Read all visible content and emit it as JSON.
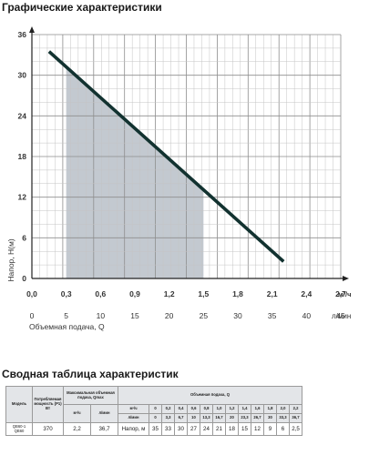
{
  "titles": {
    "chart_section": "Графические характеристики",
    "table_section": "Сводная таблица характеристик"
  },
  "chart_data": {
    "type": "line",
    "ylabel": "Напор, H(м)",
    "xlabel": "Объемная подача, Q",
    "x_unit_top": "м³/ч",
    "x_unit_bottom": "л/мин",
    "xlim": [
      0,
      2.7
    ],
    "ylim": [
      0,
      36
    ],
    "x_ticks": [
      "0,0",
      "0,3",
      "0,6",
      "0,9",
      "1,2",
      "1,5",
      "1,8",
      "2,1",
      "2,4",
      "2,7"
    ],
    "x_ticks_lmin": [
      "0",
      "5",
      "10",
      "15",
      "20",
      "25",
      "30",
      "35",
      "40",
      "45"
    ],
    "y_ticks": [
      "0",
      "6",
      "12",
      "18",
      "24",
      "30",
      "36"
    ],
    "grid": true,
    "series": [
      {
        "x": [
          0.15,
          2.2
        ],
        "y": [
          33.5,
          2.5
        ],
        "color": "#123230"
      }
    ],
    "shaded_range_x": [
      0.3,
      1.5
    ],
    "shade_color": "#bdc3cb"
  },
  "table": {
    "model_header": "Модель",
    "power_header": "Потребляемая мощность (P1) Вт",
    "max_flow_header": "Максимальная объемная подача, Qmax",
    "unit_m3h": "м³/ч",
    "unit_lmin": "л/мин",
    "flow_header": "Объемная подача, Q",
    "flow_unit_m3h": "м³/ч",
    "flow_unit_lmin": "л/мин",
    "q_m3h": [
      "0",
      "0,2",
      "0,4",
      "0,6",
      "0,8",
      "1,0",
      "1,2",
      "1,4",
      "1,6",
      "1,8",
      "2,0",
      "2,2"
    ],
    "q_lmin": [
      "0",
      "3,3",
      "6,7",
      "10",
      "13,3",
      "16,7",
      "20",
      "23,3",
      "26,7",
      "30",
      "33,3",
      "36,7"
    ],
    "row": {
      "model_1": "QB60-1",
      "model_2": "QB60",
      "power": "370",
      "qmax_m3h": "2,2",
      "qmax_lmin": "36,7",
      "head_label": "Напор, м",
      "heads": [
        "35",
        "33",
        "30",
        "27",
        "24",
        "21",
        "18",
        "15",
        "12",
        "9",
        "6",
        "2,5"
      ]
    }
  }
}
